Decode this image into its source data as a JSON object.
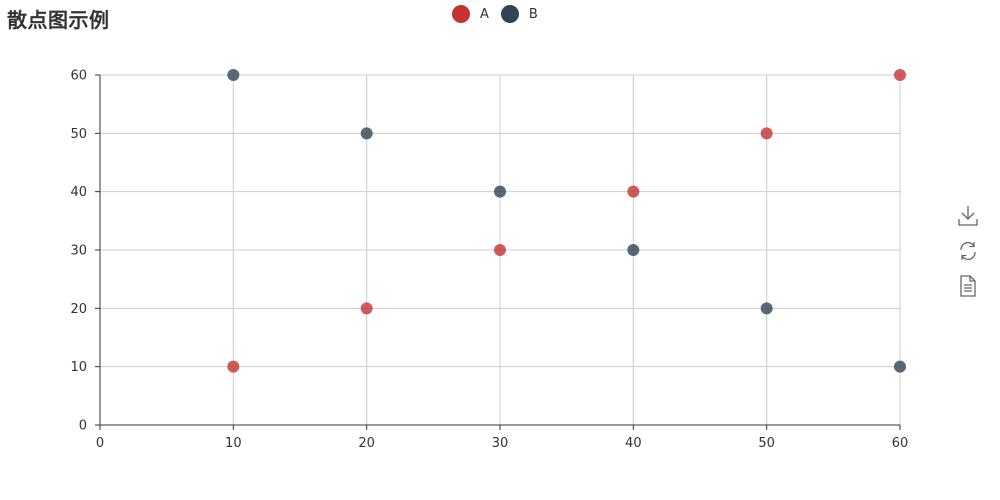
{
  "title": "散点图示例",
  "legend": [
    {
      "name": "A",
      "color": "#c23531"
    },
    {
      "name": "B",
      "color": "#2f4554"
    }
  ],
  "toolbox": {
    "icons": [
      "download-icon",
      "refresh-icon",
      "data-view-icon"
    ]
  },
  "chart_data": {
    "type": "scatter",
    "title": "散点图示例",
    "xlabel": "",
    "ylabel": "",
    "xlim": [
      0,
      60
    ],
    "ylim": [
      0,
      60
    ],
    "x_ticks": [
      0,
      10,
      20,
      30,
      40,
      50,
      60
    ],
    "y_ticks": [
      0,
      10,
      20,
      30,
      40,
      50,
      60
    ],
    "grid": true,
    "legend_position": "top-center",
    "series": [
      {
        "name": "A",
        "color": "#c23531",
        "points": [
          [
            10,
            10
          ],
          [
            20,
            20
          ],
          [
            30,
            30
          ],
          [
            40,
            40
          ],
          [
            50,
            50
          ],
          [
            60,
            60
          ]
        ]
      },
      {
        "name": "B",
        "color": "#2f4554",
        "points": [
          [
            10,
            60
          ],
          [
            20,
            50
          ],
          [
            30,
            40
          ],
          [
            40,
            30
          ],
          [
            50,
            20
          ],
          [
            60,
            10
          ]
        ]
      }
    ]
  }
}
